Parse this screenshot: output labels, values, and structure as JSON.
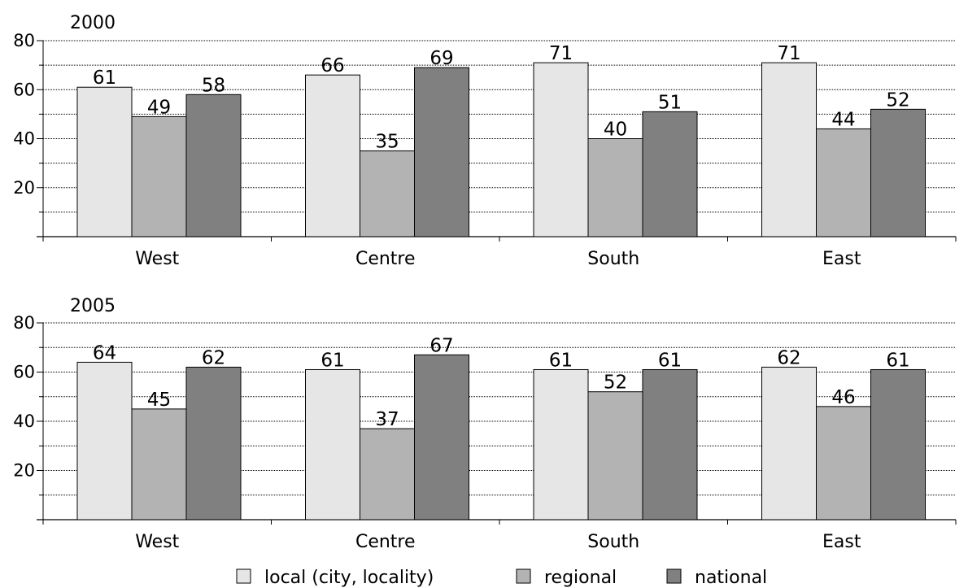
{
  "chart_data": [
    {
      "type": "bar",
      "title": "2000",
      "categories": [
        "West",
        "Centre",
        "South",
        "East"
      ],
      "series": [
        {
          "name": "local (city, locality)",
          "values": [
            61,
            66,
            71,
            71
          ]
        },
        {
          "name": "regional",
          "values": [
            49,
            35,
            40,
            44
          ]
        },
        {
          "name": "national",
          "values": [
            58,
            69,
            51,
            52
          ]
        }
      ],
      "ylim": [
        0,
        80
      ],
      "yticks": [
        20,
        40,
        60,
        80
      ],
      "grid": true,
      "legend": "bottom"
    },
    {
      "type": "bar",
      "title": "2005",
      "categories": [
        "West",
        "Centre",
        "South",
        "East"
      ],
      "series": [
        {
          "name": "local (city, locality)",
          "values": [
            64,
            61,
            61,
            62
          ]
        },
        {
          "name": "regional",
          "values": [
            45,
            37,
            52,
            46
          ]
        },
        {
          "name": "national",
          "values": [
            62,
            67,
            61,
            61
          ]
        }
      ],
      "ylim": [
        0,
        80
      ],
      "yticks": [
        20,
        40,
        60,
        80
      ],
      "grid": true,
      "legend": "bottom"
    }
  ],
  "legend": {
    "entries": [
      {
        "label": "local (city, locality)",
        "color": "#e6e6e6"
      },
      {
        "label": "regional",
        "color": "#b3b3b3"
      },
      {
        "label": "national",
        "color": "#808080"
      }
    ]
  },
  "colors": {
    "local": "#e6e6e6",
    "regional": "#b3b3b3",
    "national": "#808080",
    "outline": "#000000"
  }
}
